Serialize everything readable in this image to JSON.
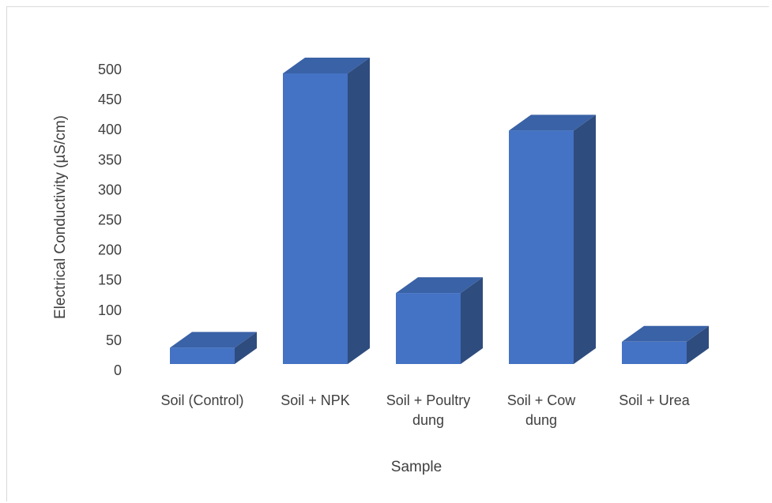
{
  "chart_data": {
    "type": "bar",
    "title": "",
    "xlabel": "Sample",
    "ylabel": "Electrical Conductivity (µS/cm)",
    "ylim": [
      0,
      500
    ],
    "yticks": [
      "0",
      "50",
      "100",
      "150",
      "200",
      "250",
      "300",
      "350",
      "400",
      "450",
      "500"
    ],
    "categories": [
      [
        "Soil (Control)"
      ],
      [
        "Soil + NPK"
      ],
      [
        "Soil + Poultry",
        "dung"
      ],
      [
        "Soil + Cow",
        "dung"
      ],
      [
        "Soil + Urea"
      ]
    ],
    "values": [
      27,
      483,
      118,
      388,
      37
    ],
    "grid": false,
    "colors": {
      "front": "#4472c4",
      "side": "#2f4c7e",
      "top": "#3a62a6"
    }
  }
}
